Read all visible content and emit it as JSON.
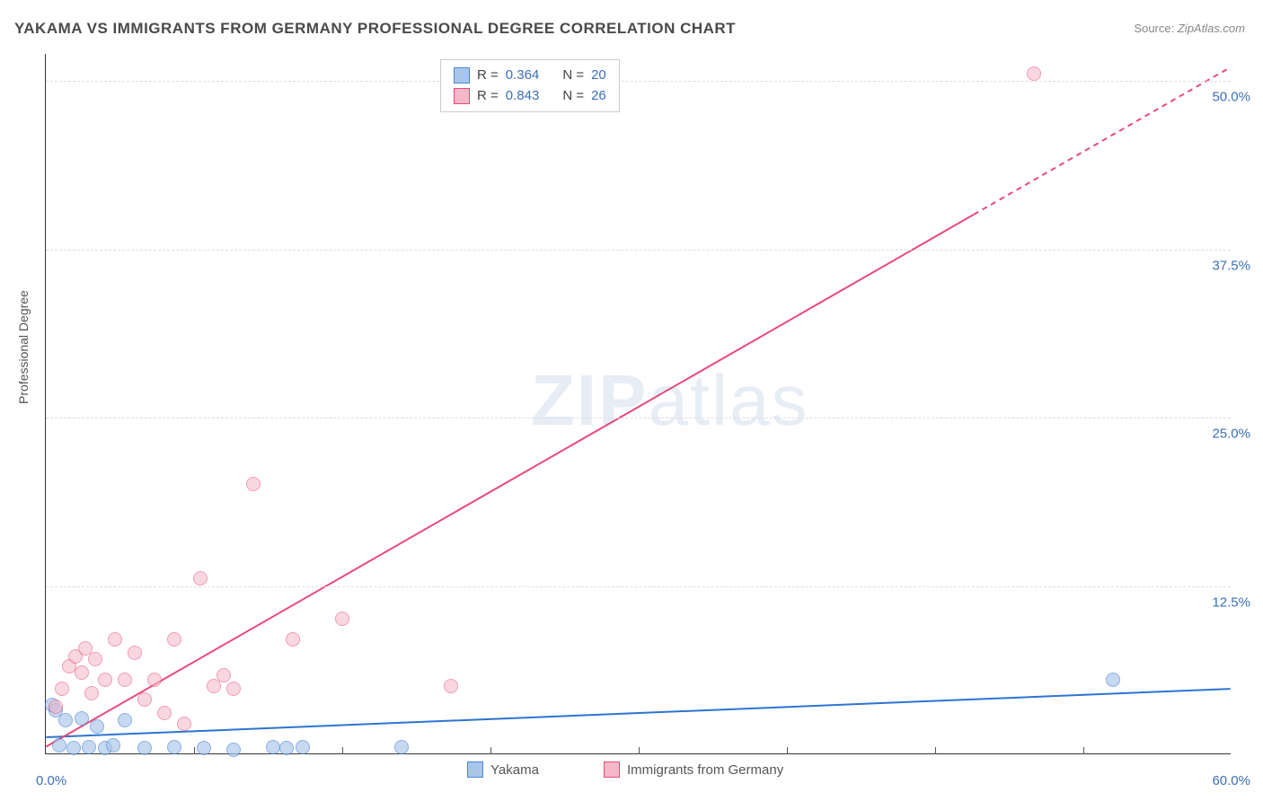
{
  "title": "YAKAMA VS IMMIGRANTS FROM GERMANY PROFESSIONAL DEGREE CORRELATION CHART",
  "source_label": "Source:",
  "source_value": "ZipAtlas.com",
  "y_axis_label": "Professional Degree",
  "watermark": {
    "bold": "ZIP",
    "rest": "atlas"
  },
  "chart": {
    "type": "scatter",
    "background_color": "#ffffff",
    "grid_color": "#dddddd",
    "axis_color": "#333333",
    "label_color": "#3b6fb6",
    "xlim": [
      0,
      60
    ],
    "ylim": [
      0,
      52
    ],
    "x_ticks": [
      0,
      60
    ],
    "x_tick_labels": [
      "0.0%",
      "60.0%"
    ],
    "x_minor_ticks": [
      7.5,
      15,
      22.5,
      30,
      37.5,
      45,
      52.5
    ],
    "y_ticks": [
      12.5,
      25.0,
      37.5,
      50.0
    ],
    "y_tick_labels": [
      "12.5%",
      "25.0%",
      "37.5%",
      "50.0%"
    ],
    "series": [
      {
        "name": "Yakama",
        "fill": "#a8c5ea",
        "stroke": "#4a87d6",
        "opacity": 0.65,
        "marker_radius": 8,
        "trend": {
          "x1": 0,
          "y1": 1.2,
          "x2": 60,
          "y2": 4.8,
          "dash_from_x": 60
        },
        "trend_color": "#2e74d0",
        "points": [
          [
            0.3,
            3.6
          ],
          [
            0.5,
            3.2
          ],
          [
            0.7,
            0.6
          ],
          [
            1.0,
            2.5
          ],
          [
            1.4,
            0.4
          ],
          [
            1.8,
            2.6
          ],
          [
            2.2,
            0.5
          ],
          [
            2.6,
            2.0
          ],
          [
            3.0,
            0.4
          ],
          [
            3.4,
            0.6
          ],
          [
            4.0,
            2.5
          ],
          [
            5.0,
            0.4
          ],
          [
            6.5,
            0.5
          ],
          [
            8.0,
            0.4
          ],
          [
            9.5,
            0.3
          ],
          [
            11.5,
            0.5
          ],
          [
            12.2,
            0.4
          ],
          [
            13.0,
            0.5
          ],
          [
            18.0,
            0.5
          ],
          [
            54.0,
            5.5
          ]
        ]
      },
      {
        "name": "Immigrants from Germany",
        "fill": "#f5b8c9",
        "stroke": "#e84a7a",
        "opacity": 0.55,
        "marker_radius": 8,
        "trend": {
          "x1": 0,
          "y1": 0.5,
          "x2": 60,
          "y2": 51.0,
          "dash_from_x": 47
        },
        "trend_color": "#e84a7a",
        "points": [
          [
            0.5,
            3.5
          ],
          [
            0.8,
            4.8
          ],
          [
            1.2,
            6.5
          ],
          [
            1.5,
            7.2
          ],
          [
            1.8,
            6.0
          ],
          [
            2.0,
            7.8
          ],
          [
            2.3,
            4.5
          ],
          [
            2.5,
            7.0
          ],
          [
            3.0,
            5.5
          ],
          [
            3.5,
            8.5
          ],
          [
            4.0,
            5.5
          ],
          [
            4.5,
            7.5
          ],
          [
            5.0,
            4.0
          ],
          [
            5.5,
            5.5
          ],
          [
            6.0,
            3.0
          ],
          [
            6.5,
            8.5
          ],
          [
            7.0,
            2.2
          ],
          [
            7.8,
            13.0
          ],
          [
            8.5,
            5.0
          ],
          [
            9.0,
            5.8
          ],
          [
            9.5,
            4.8
          ],
          [
            10.5,
            20.0
          ],
          [
            12.5,
            8.5
          ],
          [
            15.0,
            10.0
          ],
          [
            20.5,
            5.0
          ],
          [
            50.0,
            50.5
          ]
        ]
      }
    ],
    "stats": [
      {
        "swatch_fill": "#a8c5ea",
        "swatch_stroke": "#4a87d6",
        "r_label": "R =",
        "r_value": "0.364",
        "n_label": "N =",
        "n_value": "20"
      },
      {
        "swatch_fill": "#f5b8c9",
        "swatch_stroke": "#e84a7a",
        "r_label": "R =",
        "r_value": "0.843",
        "n_label": "N =",
        "n_value": "26"
      }
    ],
    "bottom_legend": [
      {
        "swatch_fill": "#a8c5ea",
        "swatch_stroke": "#4a87d6",
        "label": "Yakama"
      },
      {
        "swatch_fill": "#f5b8c9",
        "swatch_stroke": "#e84a7a",
        "label": "Immigrants from Germany"
      }
    ]
  }
}
